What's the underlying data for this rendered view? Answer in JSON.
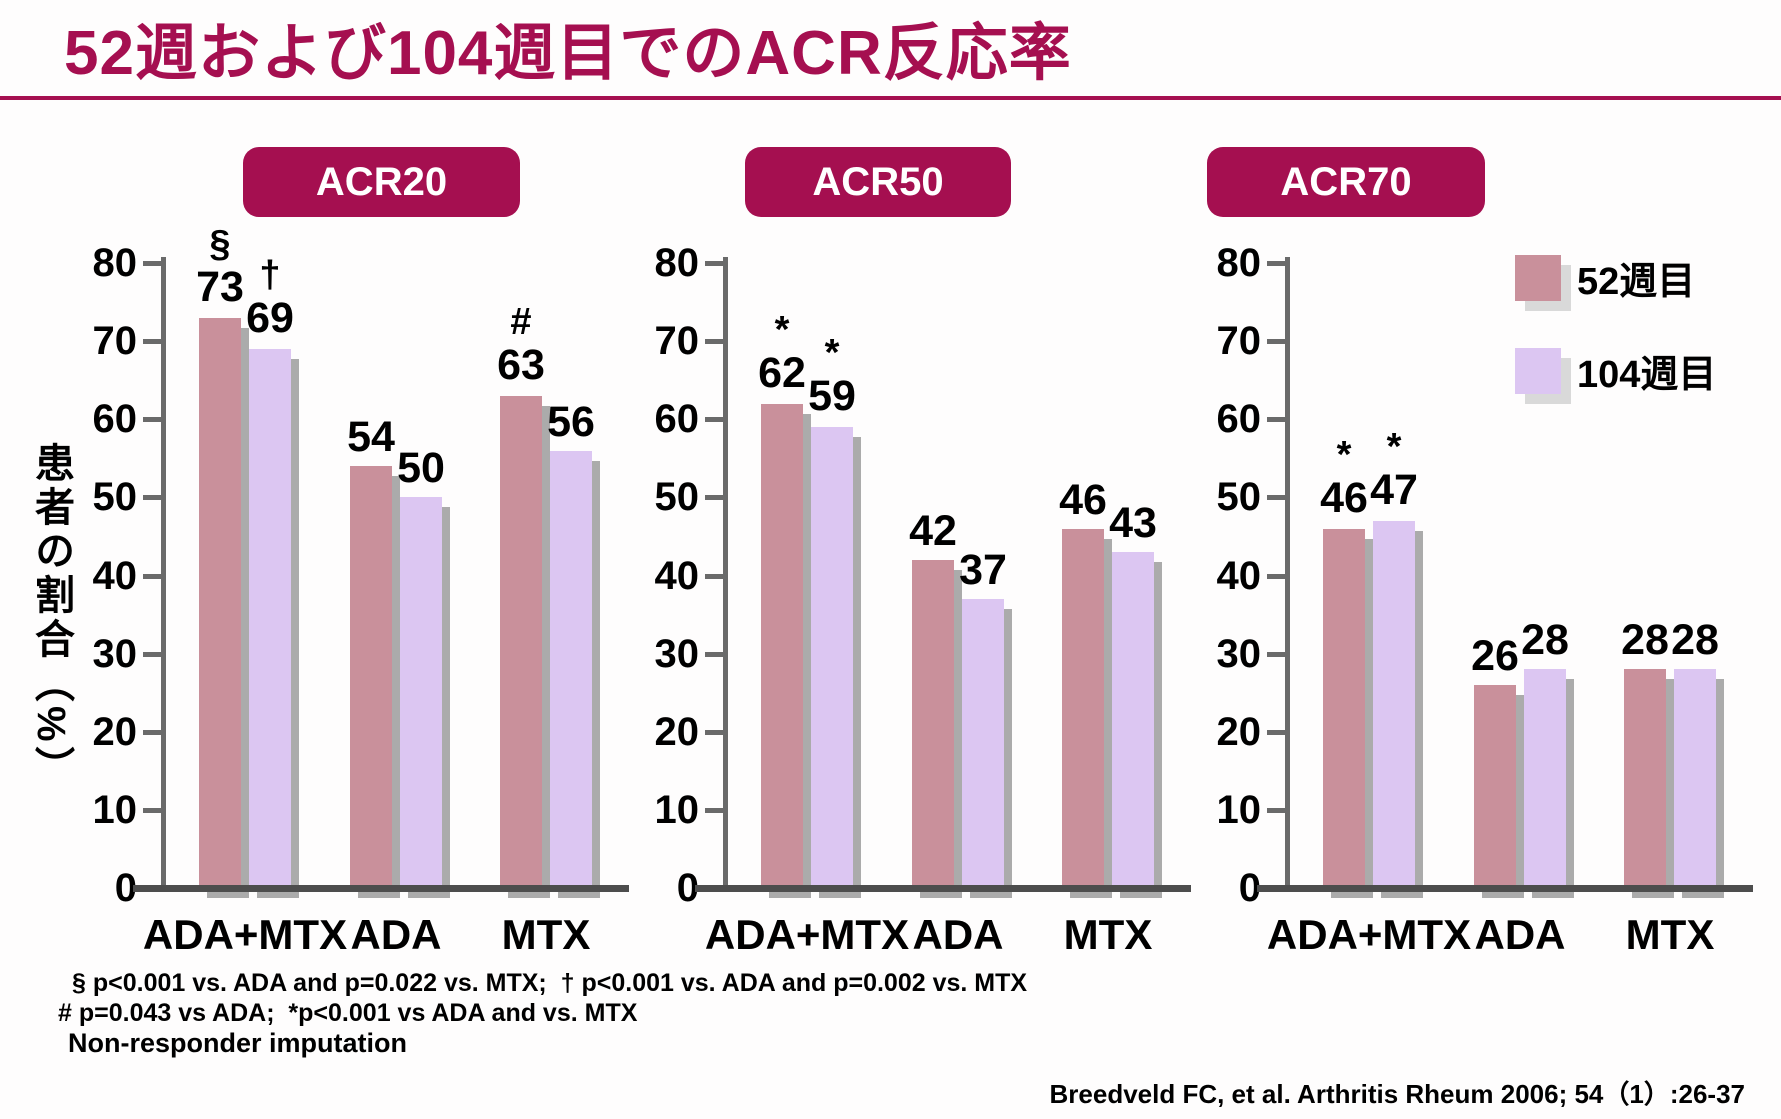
{
  "title": "52週および104週目でのACR反応率",
  "ylabel": "患者の割合（%）",
  "colors": {
    "accent": "#a50f50",
    "bar_52wk": "#c9909b",
    "bar_104wk": "#dcc6f2",
    "bar_shadow": "#ababab",
    "legend_shadow": "#d9d9d9",
    "axis": "#6a6a6a",
    "baseline": "#4d4d4d",
    "text": "#000000"
  },
  "legend": {
    "items": [
      {
        "label": "52週目",
        "color_key": "bar_52wk"
      },
      {
        "label": "104週目",
        "color_key": "bar_104wk"
      }
    ]
  },
  "chart_data": [
    {
      "type": "bar",
      "title": "ACR20",
      "categories": [
        "ADA+MTX",
        "ADA",
        "MTX"
      ],
      "series": [
        {
          "name": "52週目",
          "values": [
            73,
            54,
            63
          ],
          "annotations": [
            "§",
            "",
            "#"
          ]
        },
        {
          "name": "104週目",
          "values": [
            69,
            50,
            56
          ],
          "annotations": [
            "†",
            "",
            ""
          ]
        }
      ],
      "ylim": [
        0,
        80
      ],
      "yticks": [
        0,
        10,
        20,
        30,
        40,
        50,
        60,
        70,
        80
      ],
      "grid": false,
      "legend_position": "none"
    },
    {
      "type": "bar",
      "title": "ACR50",
      "categories": [
        "ADA+MTX",
        "ADA",
        "MTX"
      ],
      "series": [
        {
          "name": "52週目",
          "values": [
            62,
            42,
            46
          ],
          "annotations": [
            "*",
            "",
            ""
          ]
        },
        {
          "name": "104週目",
          "values": [
            59,
            37,
            43
          ],
          "annotations": [
            "*",
            "",
            ""
          ]
        }
      ],
      "ylim": [
        0,
        80
      ],
      "yticks": [
        0,
        10,
        20,
        30,
        40,
        50,
        60,
        70,
        80
      ],
      "grid": false,
      "legend_position": "none"
    },
    {
      "type": "bar",
      "title": "ACR70",
      "categories": [
        "ADA+MTX",
        "ADA",
        "MTX"
      ],
      "series": [
        {
          "name": "52週目",
          "values": [
            46,
            26,
            28
          ],
          "annotations": [
            "*",
            "",
            ""
          ]
        },
        {
          "name": "104週目",
          "values": [
            47,
            28,
            28
          ],
          "annotations": [
            "*",
            "",
            ""
          ]
        }
      ],
      "ylim": [
        0,
        80
      ],
      "yticks": [
        0,
        10,
        20,
        30,
        40,
        50,
        60,
        70,
        80
      ],
      "grid": false,
      "legend_position": "top-right"
    }
  ],
  "footnotes": [
    "§ p<0.001 vs. ADA and p=0.022 vs. MTX;  † p<0.001 vs. ADA and p=0.002 vs. MTX",
    "# p=0.043 vs ADA;  *p<0.001 vs ADA and vs. MTX",
    "Non-responder imputation"
  ],
  "citation": "Breedveld FC, et al. Arthritis Rheum 2006; 54（1）:26-37"
}
